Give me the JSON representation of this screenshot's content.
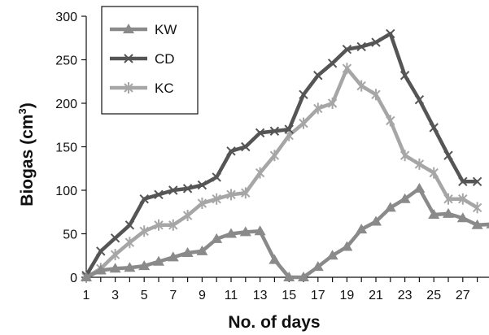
{
  "chart_data": {
    "type": "line",
    "xlabel": "No. of days",
    "ylabel": "Biogas (cm",
    "ylabel_sup": "3",
    "ylabel_close": ")",
    "xlim": [
      1,
      29
    ],
    "ylim": [
      0,
      300
    ],
    "x_ticks": [
      1,
      3,
      5,
      7,
      9,
      11,
      13,
      15,
      17,
      19,
      21,
      23,
      25,
      27
    ],
    "y_ticks": [
      0,
      50,
      100,
      150,
      200,
      250,
      300
    ],
    "legend_position": "top-left",
    "grid": false,
    "x": [
      1,
      2,
      3,
      4,
      5,
      6,
      7,
      8,
      9,
      10,
      11,
      12,
      13,
      14,
      15,
      16,
      17,
      18,
      19,
      20,
      21,
      22,
      23,
      24,
      25,
      26,
      27,
      28,
      29
    ],
    "series": [
      {
        "name": "KW",
        "marker": "triangle",
        "color": "#8a8a8a",
        "values": [
          0,
          8,
          10,
          11,
          13,
          18,
          23,
          28,
          30,
          44,
          50,
          52,
          53,
          20,
          0,
          0,
          12,
          25,
          35,
          55,
          64,
          80,
          90,
          102,
          72,
          73,
          68,
          60,
          61
        ]
      },
      {
        "name": "CD",
        "marker": "x",
        "color": "#555555",
        "values": [
          2,
          30,
          45,
          60,
          90,
          95,
          100,
          102,
          106,
          115,
          145,
          150,
          166,
          168,
          170,
          210,
          232,
          246,
          262,
          265,
          270,
          280,
          232,
          204,
          172,
          140,
          110,
          110,
          null
        ]
      },
      {
        "name": "KC",
        "marker": "asterisk",
        "color": "#a6a6a6",
        "values": [
          0,
          10,
          26,
          40,
          53,
          60,
          60,
          71,
          85,
          90,
          95,
          97,
          120,
          140,
          163,
          177,
          194,
          200,
          240,
          220,
          210,
          180,
          140,
          130,
          120,
          90,
          90,
          80,
          null
        ]
      }
    ]
  }
}
